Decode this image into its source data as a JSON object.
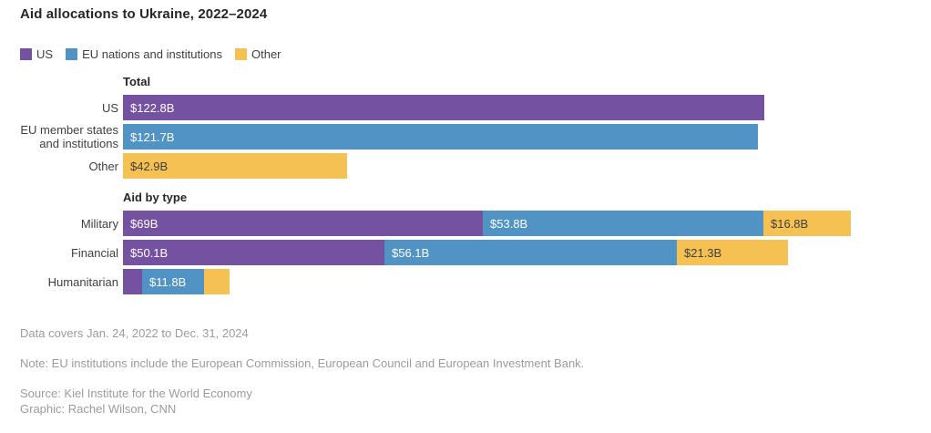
{
  "title": "Aid allocations to Ukraine, 2022–2024",
  "legend": {
    "items": [
      {
        "label": "US",
        "color": "#7551A1"
      },
      {
        "label": "EU nations and institutions",
        "color": "#5193C4"
      },
      {
        "label": "Other",
        "color": "#F5C152"
      }
    ]
  },
  "chart_data": {
    "type": "bar",
    "orientation": "horizontal",
    "stacked": true,
    "unit": "USD billions",
    "axis_max": 139.6,
    "grid": false,
    "legend_position": "top-left",
    "series": [
      {
        "name": "US",
        "color": "#7551A1",
        "label_color": "#FFFFFF"
      },
      {
        "name": "EU nations and institutions",
        "color": "#5193C4",
        "label_color": "#FFFFFF"
      },
      {
        "name": "Other",
        "color": "#F5C152",
        "label_color": "#404040"
      }
    ],
    "sections": [
      {
        "header": "Total",
        "rows": [
          {
            "label": "US",
            "segments": [
              {
                "series": 0,
                "value": 122.8,
                "label": "$122.8B"
              }
            ]
          },
          {
            "label": "EU member states\nand institutions",
            "segments": [
              {
                "series": 1,
                "value": 121.7,
                "label": "$121.7B"
              }
            ]
          },
          {
            "label": "Other",
            "segments": [
              {
                "series": 2,
                "value": 42.9,
                "label": "$42.9B"
              }
            ]
          }
        ]
      },
      {
        "header": "Aid by type",
        "rows": [
          {
            "label": "Military",
            "segments": [
              {
                "series": 0,
                "value": 69,
                "label": "$69B"
              },
              {
                "series": 1,
                "value": 53.8,
                "label": "$53.8B"
              },
              {
                "series": 2,
                "value": 16.8,
                "label": "$16.8B"
              }
            ]
          },
          {
            "label": "Financial",
            "segments": [
              {
                "series": 0,
                "value": 50.1,
                "label": "$50.1B"
              },
              {
                "series": 1,
                "value": 56.1,
                "label": "$56.1B"
              },
              {
                "series": 2,
                "value": 21.3,
                "label": "$21.3B"
              }
            ]
          },
          {
            "label": "Humanitarian",
            "segments": [
              {
                "series": 0,
                "value": 3.7,
                "label": ""
              },
              {
                "series": 1,
                "value": 11.8,
                "label": "$11.8B"
              },
              {
                "series": 2,
                "value": 4.8,
                "label": ""
              }
            ]
          }
        ]
      }
    ]
  },
  "footer": {
    "coverage": "Data covers Jan. 24, 2022 to Dec. 31, 2024",
    "note": "Note: EU institutions include the European Commission, European Council and European Investment Bank.",
    "source": "Source: Kiel Institute for the World Economy",
    "credit": "Graphic: Rachel Wilson, CNN"
  }
}
